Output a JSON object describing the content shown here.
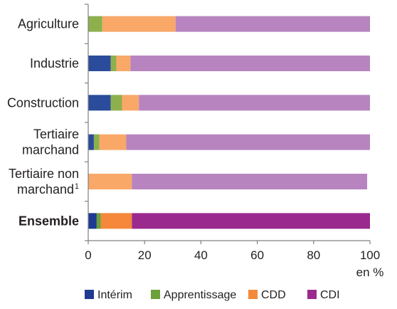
{
  "chart_data": {
    "type": "bar",
    "orientation": "horizontal",
    "stacked": true,
    "categories": [
      {
        "lines": [
          "Agriculture"
        ],
        "bold": false
      },
      {
        "lines": [
          "Industrie"
        ],
        "bold": false
      },
      {
        "lines": [
          "Construction"
        ],
        "bold": false
      },
      {
        "lines": [
          "Tertiaire",
          "marchand"
        ],
        "bold": false
      },
      {
        "lines": [
          "Tertiaire non",
          "marchand"
        ],
        "sup": "1",
        "bold": false
      },
      {
        "lines": [
          "Ensemble"
        ],
        "bold": true
      }
    ],
    "series": [
      {
        "name": "Intérim",
        "color": "#2b4c9b",
        "highlight_color": "#1f3a93",
        "values": [
          0,
          8,
          8,
          2,
          0,
          3
        ]
      },
      {
        "name": "Apprentissage",
        "color": "#8db04d",
        "highlight_color": "#6d9f3a",
        "values": [
          5,
          2,
          4,
          2,
          0,
          1.5
        ]
      },
      {
        "name": "CDD",
        "color": "#f9a868",
        "highlight_color": "#f5883a",
        "values": [
          26,
          5,
          6,
          9.5,
          15.5,
          11
        ]
      },
      {
        "name": "CDI",
        "color": "#b784c0",
        "highlight_color": "#9a2a8e",
        "values": [
          69,
          85,
          82,
          86.5,
          83.5,
          84.5
        ]
      }
    ],
    "xlim": [
      0,
      100
    ],
    "xticks": [
      0,
      20,
      40,
      60,
      80,
      100
    ],
    "xlabel": "en %",
    "grid": false,
    "legend_position": "bottom"
  }
}
